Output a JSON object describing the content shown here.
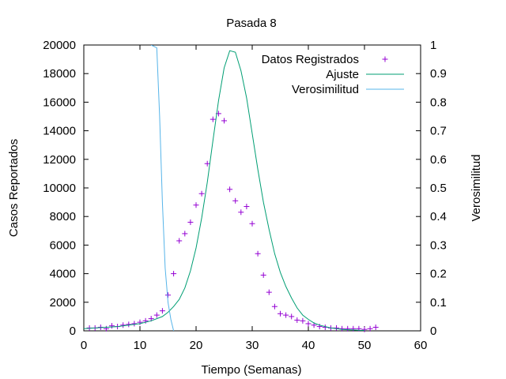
{
  "chart_data": {
    "type": "line",
    "title": "Pasada 8",
    "xlabel": "Tiempo (Semanas)",
    "ylabel": "Casos Reportados",
    "y2label": "Verosimilitud",
    "xlim": [
      0,
      60
    ],
    "ylim": [
      0,
      20000
    ],
    "y2lim": [
      0,
      1
    ],
    "xticks": [
      "0",
      "10",
      "20",
      "30",
      "40",
      "50",
      "60"
    ],
    "yticks": [
      "0",
      "2000",
      "4000",
      "6000",
      "8000",
      "10000",
      "12000",
      "14000",
      "16000",
      "18000",
      "20000"
    ],
    "y2ticks": [
      "0",
      "0.1",
      "0.2",
      "0.3",
      "0.4",
      "0.5",
      "0.6",
      "0.7",
      "0.8",
      "0.9",
      "1"
    ],
    "grid": false,
    "legend_position": "top-right",
    "series": [
      {
        "name": "Datos Registrados",
        "type": "scatter",
        "axis": "y",
        "color": "#9400d3",
        "marker": "plus",
        "x": [
          1,
          2,
          3,
          4,
          5,
          6,
          7,
          8,
          9,
          10,
          11,
          12,
          13,
          14,
          15,
          16,
          17,
          18,
          19,
          20,
          21,
          22,
          23,
          24,
          25,
          26,
          27,
          28,
          29,
          30,
          31,
          32,
          33,
          34,
          35,
          36,
          37,
          38,
          39,
          40,
          41,
          42,
          43,
          44,
          45,
          46,
          47,
          48,
          49,
          50,
          51,
          52
        ],
        "y": [
          200,
          200,
          250,
          150,
          350,
          300,
          400,
          450,
          500,
          600,
          700,
          850,
          1100,
          1400,
          2500,
          4000,
          6300,
          6800,
          7600,
          8800,
          9600,
          11700,
          14800,
          15200,
          14700,
          9900,
          9100,
          8300,
          8700,
          7500,
          5400,
          3900,
          2700,
          1700,
          1200,
          1100,
          1000,
          750,
          700,
          500,
          400,
          300,
          250,
          200,
          200,
          150,
          150,
          150,
          150,
          100,
          150,
          250
        ]
      },
      {
        "name": "Ajuste",
        "type": "line",
        "axis": "y",
        "color": "#009e73",
        "x": [
          0,
          2,
          4,
          6,
          8,
          10,
          12,
          14,
          15,
          16,
          17,
          18,
          19,
          20,
          21,
          22,
          23,
          24,
          25,
          26,
          27,
          28,
          29,
          30,
          31,
          32,
          33,
          34,
          35,
          36,
          37,
          38,
          39,
          40,
          41,
          42,
          43,
          44,
          45,
          46,
          47,
          48,
          49,
          50
        ],
        "y": [
          150,
          200,
          250,
          300,
          400,
          500,
          700,
          1000,
          1300,
          1700,
          2200,
          3000,
          4200,
          5800,
          7900,
          10400,
          13300,
          16100,
          18400,
          19600,
          19500,
          18200,
          16300,
          13800,
          11300,
          9000,
          7100,
          5400,
          4100,
          3100,
          2300,
          1600,
          1100,
          800,
          550,
          400,
          300,
          200,
          150,
          100,
          80,
          60,
          40,
          30
        ]
      },
      {
        "name": "Verosimilitud",
        "type": "line",
        "axis": "y2",
        "color": "#56b4e9",
        "x": [
          12,
          13,
          13.5,
          14,
          14.5,
          15,
          15.5,
          16
        ],
        "y": [
          1.0,
          0.99,
          0.75,
          0.45,
          0.22,
          0.1,
          0.04,
          0.0
        ]
      }
    ]
  }
}
